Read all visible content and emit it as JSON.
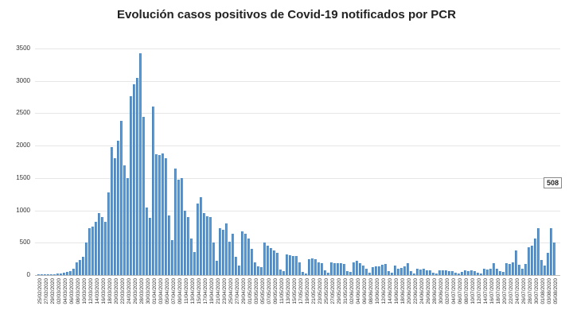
{
  "chart_data": {
    "type": "bar",
    "title": "Evolución casos positivos de Covid-19 notificados por PCR",
    "xlabel": "",
    "ylabel": "",
    "ylim": [
      0,
      3500
    ],
    "yticks": [
      0,
      500,
      1000,
      1500,
      2000,
      2500,
      3000,
      3500
    ],
    "grid": true,
    "legend": "none",
    "annotation": {
      "label": "508",
      "date": "05/08/2020",
      "value": 508
    },
    "xtick_labels": [
      "25/02/2020",
      "27/02/2020",
      "29/02/2020",
      "02/03/2020",
      "04/03/2020",
      "06/03/2020",
      "08/03/2020",
      "10/03/2020",
      "12/03/2020",
      "14/03/2020",
      "16/03/2020",
      "18/03/2020",
      "20/03/2020",
      "22/03/2020",
      "24/03/2020",
      "26/03/2020",
      "28/03/2020",
      "30/03/2020",
      "01/04/2020",
      "03/04/2020",
      "05/04/2020",
      "07/04/2020",
      "09/04/2020",
      "11/04/2020",
      "13/04/2020",
      "15/04/2020",
      "17/04/2020",
      "19/04/2020",
      "21/04/2020",
      "23/04/2020",
      "25/04/2020",
      "27/04/2020",
      "29/04/2020",
      "01/05/2020",
      "03/05/2020",
      "05/05/2020",
      "07/05/2020",
      "09/05/2020",
      "11/05/2020",
      "13/05/2020",
      "15/05/2020",
      "17/05/2020",
      "19/05/2020",
      "21/05/2020",
      "23/05/2020",
      "25/05/2020",
      "27/05/2020",
      "29/05/2020",
      "31/05/2020",
      "02/06/2020",
      "04/06/2020",
      "06/06/2020",
      "08/06/2020",
      "10/06/2020",
      "12/06/2020",
      "14/06/2020",
      "16/06/2020",
      "18/06/2020",
      "20/06/2020",
      "22/06/2020",
      "24/06/2020",
      "26/06/2020",
      "28/06/2020",
      "30/06/2020",
      "02/07/2020",
      "04/07/2020",
      "06/07/2020",
      "08/07/2020",
      "10/07/2020",
      "12/07/2020",
      "14/07/2020",
      "16/07/2020",
      "18/07/2020",
      "20/07/2020",
      "22/07/2020",
      "24/07/2020",
      "26/07/2020",
      "28/07/2020",
      "30/07/2020",
      "01/08/2020",
      "03/08/2020",
      "05/08/2020"
    ],
    "values": [
      5,
      5,
      5,
      10,
      10,
      15,
      20,
      30,
      40,
      45,
      60,
      100,
      200,
      230,
      280,
      500,
      720,
      750,
      820,
      960,
      900,
      820,
      1280,
      1980,
      1800,
      2070,
      2380,
      1700,
      1500,
      2760,
      2950,
      3050,
      3430,
      2440,
      1040,
      880,
      2600,
      1870,
      1850,
      1880,
      1800,
      920,
      540,
      1650,
      1480,
      1500,
      1000,
      900,
      570,
      360,
      1100,
      1200,
      960,
      910,
      900,
      500,
      220,
      720,
      700,
      800,
      520,
      640,
      280,
      150,
      680,
      640,
      560,
      400,
      200,
      140,
      120,
      500,
      450,
      420,
      380,
      350,
      90,
      60,
      320,
      310,
      300,
      300,
      200,
      50,
      30,
      250,
      260,
      240,
      200,
      190,
      70,
      40,
      200,
      180,
      190,
      180,
      170,
      60,
      50,
      200,
      220,
      190,
      150,
      100,
      40,
      120,
      130,
      140,
      160,
      170,
      60,
      40,
      150,
      100,
      110,
      130,
      180,
      60,
      30,
      100,
      90,
      100,
      80,
      80,
      40,
      30,
      80,
      80,
      70,
      60,
      60,
      40,
      20,
      50,
      80,
      60,
      70,
      60,
      40,
      20,
      100,
      90,
      100,
      190,
      100,
      60,
      50,
      180,
      170,
      200,
      380,
      160,
      100,
      170,
      430,
      450,
      560,
      720,
      230,
      150,
      350,
      730,
      508
    ]
  },
  "header": {
    "title": "Evolución casos positivos de Covid-19 notificados por PCR"
  },
  "callout": {
    "label": "508"
  }
}
